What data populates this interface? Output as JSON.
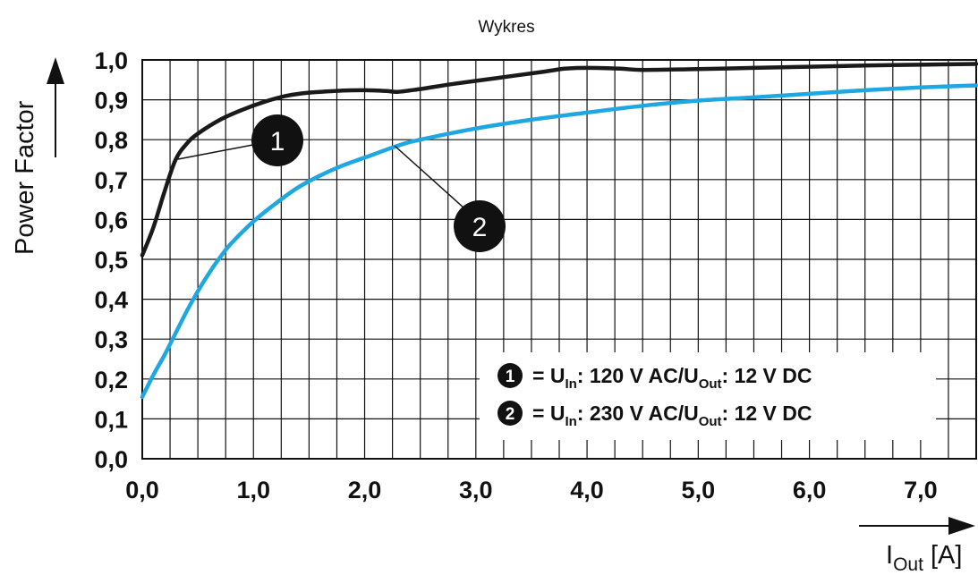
{
  "chart_data": {
    "type": "line",
    "title": "Wykres",
    "ylabel": "Power Factor",
    "xlabel_main": "I",
    "xlabel_sub": "Out",
    "xlabel_unit": " [A]",
    "xlim": [
      0,
      7.5
    ],
    "ylim": [
      0,
      1.0
    ],
    "x_ticks": [
      "0,0",
      "1,0",
      "2,0",
      "3,0",
      "4,0",
      "5,0",
      "6,0",
      "7,0"
    ],
    "y_ticks": [
      "0,0",
      "0,1",
      "0,2",
      "0,3",
      "0,4",
      "0,5",
      "0,6",
      "0,7",
      "0,8",
      "0,9",
      "1,0"
    ],
    "grid": true,
    "legend_position": "bottom-right",
    "series": [
      {
        "id": "1",
        "color": "#1a1a1a",
        "legend": {
          "badge": "1",
          "prefix": "= U",
          "sub1": "In",
          "middle": ": 120 V AC/U",
          "sub2": "Out",
          "suffix": ": 12 V DC"
        },
        "points": [
          [
            0.0,
            0.51
          ],
          [
            0.1,
            0.58
          ],
          [
            0.2,
            0.67
          ],
          [
            0.3,
            0.75
          ],
          [
            0.4,
            0.79
          ],
          [
            0.5,
            0.815
          ],
          [
            0.7,
            0.85
          ],
          [
            0.9,
            0.875
          ],
          [
            1.1,
            0.895
          ],
          [
            1.3,
            0.91
          ],
          [
            1.5,
            0.918
          ],
          [
            1.8,
            0.923
          ],
          [
            2.0,
            0.924
          ],
          [
            2.2,
            0.922
          ],
          [
            2.3,
            0.92
          ],
          [
            2.5,
            0.927
          ],
          [
            2.8,
            0.94
          ],
          [
            3.2,
            0.955
          ],
          [
            3.6,
            0.97
          ],
          [
            3.8,
            0.978
          ],
          [
            4.0,
            0.98
          ],
          [
            4.3,
            0.978
          ],
          [
            4.5,
            0.975
          ],
          [
            5.0,
            0.977
          ],
          [
            5.5,
            0.98
          ],
          [
            6.0,
            0.983
          ],
          [
            6.5,
            0.986
          ],
          [
            7.0,
            0.988
          ],
          [
            7.5,
            0.99
          ]
        ]
      },
      {
        "id": "2",
        "color": "#1ea7e1",
        "legend": {
          "badge": "2",
          "prefix": "= U",
          "sub1": "In",
          "middle": ": 230 V AC/U",
          "sub2": "Out",
          "suffix": ": 12 V DC"
        },
        "points": [
          [
            0.0,
            0.155
          ],
          [
            0.1,
            0.21
          ],
          [
            0.2,
            0.26
          ],
          [
            0.3,
            0.315
          ],
          [
            0.4,
            0.37
          ],
          [
            0.5,
            0.42
          ],
          [
            0.6,
            0.465
          ],
          [
            0.7,
            0.505
          ],
          [
            0.8,
            0.54
          ],
          [
            1.0,
            0.595
          ],
          [
            1.2,
            0.64
          ],
          [
            1.4,
            0.68
          ],
          [
            1.6,
            0.71
          ],
          [
            1.8,
            0.735
          ],
          [
            2.0,
            0.755
          ],
          [
            2.3,
            0.785
          ],
          [
            2.5,
            0.8
          ],
          [
            3.0,
            0.828
          ],
          [
            3.5,
            0.85
          ],
          [
            4.0,
            0.868
          ],
          [
            4.5,
            0.885
          ],
          [
            5.0,
            0.898
          ],
          [
            5.5,
            0.906
          ],
          [
            6.0,
            0.915
          ],
          [
            6.5,
            0.924
          ],
          [
            7.0,
            0.931
          ],
          [
            7.5,
            0.936
          ]
        ]
      }
    ],
    "callouts": [
      "1",
      "2"
    ]
  }
}
